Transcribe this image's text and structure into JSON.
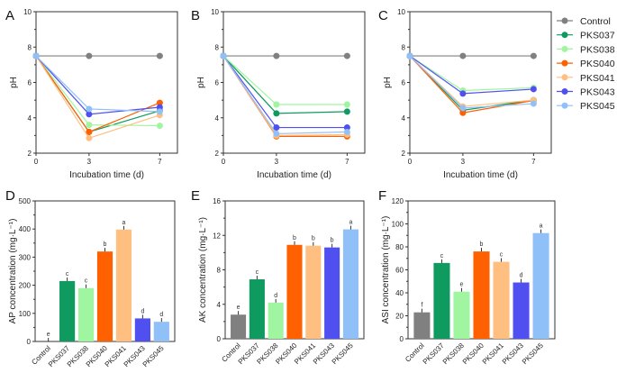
{
  "series_meta": [
    {
      "name": "Control",
      "color": "#808080"
    },
    {
      "name": "PKS037",
      "color": "#0f9a60"
    },
    {
      "name": "PKS038",
      "color": "#a0f5a0"
    },
    {
      "name": "PKS040",
      "color": "#ff6000"
    },
    {
      "name": "PKS041",
      "color": "#ffbf80"
    },
    {
      "name": "PKS043",
      "color": "#5050f0"
    },
    {
      "name": "PKS045",
      "color": "#90c0f8"
    }
  ],
  "legend": {
    "position": "right",
    "entries": [
      "Control",
      "PKS037",
      "PKS038",
      "PKS040",
      "PKS041",
      "PKS043",
      "PKS045"
    ]
  },
  "chart_data": [
    {
      "panel": "A",
      "type": "line",
      "xlabel": "Incubation time (d)",
      "ylabel": "pH",
      "x": [
        0,
        3,
        7
      ],
      "xticks": [
        0,
        3,
        7
      ],
      "xlim": [
        0,
        8
      ],
      "ylim": [
        2,
        10
      ],
      "yticks": [
        2,
        4,
        6,
        8,
        10
      ],
      "series": [
        {
          "name": "Control",
          "values": [
            7.5,
            7.5,
            7.5
          ]
        },
        {
          "name": "PKS037",
          "values": [
            7.5,
            3.2,
            4.4
          ]
        },
        {
          "name": "PKS038",
          "values": [
            7.5,
            3.6,
            3.55
          ]
        },
        {
          "name": "PKS040",
          "values": [
            7.5,
            3.2,
            4.85
          ]
        },
        {
          "name": "PKS041",
          "values": [
            7.5,
            2.85,
            4.15
          ]
        },
        {
          "name": "PKS043",
          "values": [
            7.5,
            4.2,
            4.6
          ]
        },
        {
          "name": "PKS045",
          "values": [
            7.5,
            4.5,
            4.35
          ]
        }
      ]
    },
    {
      "panel": "B",
      "type": "line",
      "xlabel": "Incubation time (d)",
      "ylabel": "pH",
      "x": [
        0,
        3,
        7
      ],
      "xticks": [
        0,
        3,
        7
      ],
      "xlim": [
        0,
        8
      ],
      "ylim": [
        2,
        10
      ],
      "yticks": [
        2,
        4,
        6,
        8,
        10
      ],
      "series": [
        {
          "name": "Control",
          "values": [
            7.5,
            7.5,
            7.5
          ]
        },
        {
          "name": "PKS037",
          "values": [
            7.5,
            4.25,
            4.35
          ]
        },
        {
          "name": "PKS038",
          "values": [
            7.5,
            4.75,
            4.75
          ]
        },
        {
          "name": "PKS040",
          "values": [
            7.5,
            2.95,
            2.95
          ]
        },
        {
          "name": "PKS041",
          "values": [
            7.5,
            3.0,
            3.05
          ]
        },
        {
          "name": "PKS043",
          "values": [
            7.5,
            3.45,
            3.45
          ]
        },
        {
          "name": "PKS045",
          "values": [
            7.5,
            3.1,
            3.2
          ]
        }
      ]
    },
    {
      "panel": "C",
      "type": "line",
      "xlabel": "Incubation time (d)",
      "ylabel": "pH",
      "x": [
        0,
        3,
        7
      ],
      "xticks": [
        0,
        3,
        7
      ],
      "xlim": [
        0,
        8
      ],
      "ylim": [
        2,
        10
      ],
      "yticks": [
        2,
        4,
        6,
        8,
        10
      ],
      "series": [
        {
          "name": "Control",
          "values": [
            7.5,
            7.5,
            7.5
          ]
        },
        {
          "name": "PKS037",
          "values": [
            7.5,
            4.43,
            5.0
          ]
        },
        {
          "name": "PKS038",
          "values": [
            7.5,
            5.54,
            5.7
          ]
        },
        {
          "name": "PKS040",
          "values": [
            7.5,
            4.28,
            4.98
          ]
        },
        {
          "name": "PKS041",
          "values": [
            7.5,
            4.64,
            5.0
          ]
        },
        {
          "name": "PKS043",
          "values": [
            7.5,
            5.37,
            5.62
          ]
        },
        {
          "name": "PKS045",
          "values": [
            7.5,
            4.55,
            4.8
          ]
        }
      ]
    },
    {
      "panel": "D",
      "type": "bar",
      "ylabel": "AP concentration (mg·L⁻¹)",
      "ylim": [
        0,
        500
      ],
      "yticks": [
        0,
        100,
        200,
        300,
        400,
        500
      ],
      "categories": [
        "Control",
        "PKS037",
        "PKS038",
        "PKS040",
        "PKS041",
        "PKS043",
        "PKS045"
      ],
      "values": [
        0,
        215,
        190,
        320,
        398,
        82,
        70
      ],
      "letters": [
        "e",
        "c",
        "c",
        "b",
        "a",
        "d",
        "d"
      ]
    },
    {
      "panel": "E",
      "type": "bar",
      "ylabel": "AK concentration (mg·L⁻¹)",
      "ylim": [
        0,
        16
      ],
      "yticks": [
        0,
        4,
        8,
        12,
        16
      ],
      "categories": [
        "Control",
        "PKS037",
        "PKS038",
        "PKS040",
        "PKS041",
        "PKS043",
        "PKS045"
      ],
      "values": [
        2.8,
        6.9,
        4.2,
        10.9,
        10.8,
        10.6,
        12.7
      ],
      "letters": [
        "e",
        "c",
        "d",
        "b",
        "b",
        "b",
        "a"
      ]
    },
    {
      "panel": "F",
      "type": "bar",
      "ylabel": "ASI concentration (mg·L⁻¹)",
      "ylim": [
        0,
        120
      ],
      "yticks": [
        0,
        20,
        40,
        60,
        80,
        100,
        120
      ],
      "categories": [
        "Control",
        "PKS037",
        "PKS038",
        "PKS040",
        "PKS041",
        "PKS043",
        "PKS045"
      ],
      "values": [
        23,
        66,
        41,
        76,
        67,
        49,
        92
      ],
      "letters": [
        "f",
        "c",
        "e",
        "b",
        "c",
        "d",
        "a"
      ]
    }
  ]
}
